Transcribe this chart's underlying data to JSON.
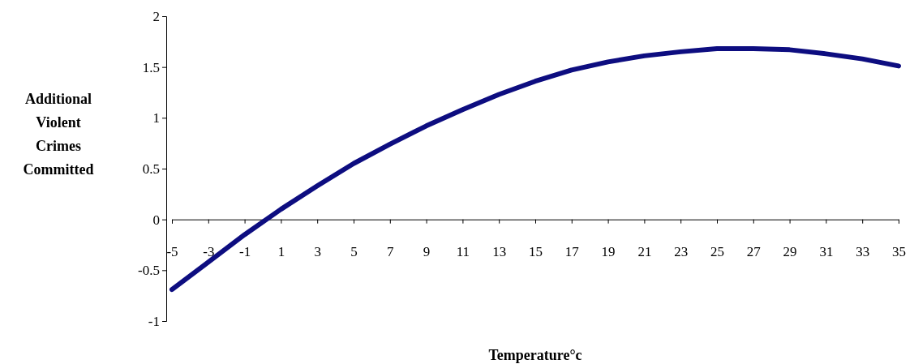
{
  "chart_data": {
    "type": "line",
    "ylabel": "Additional Violent Crimes Committed",
    "xlabel": "Temperature°c",
    "x": [
      -5,
      -3,
      -1,
      1,
      3,
      5,
      7,
      9,
      11,
      13,
      15,
      17,
      19,
      21,
      23,
      25,
      27,
      29,
      31,
      33,
      35
    ],
    "series": [
      {
        "color": "#0d0d80",
        "values": [
          -0.69,
          -0.42,
          -0.15,
          0.1,
          0.33,
          0.55,
          0.74,
          0.92,
          1.08,
          1.23,
          1.36,
          1.47,
          1.55,
          1.61,
          1.65,
          1.68,
          1.68,
          1.67,
          1.63,
          1.58,
          1.51
        ]
      }
    ],
    "xlim": [
      -5,
      35
    ],
    "xticks": [
      -5,
      -3,
      -1,
      1,
      3,
      5,
      7,
      9,
      11,
      13,
      15,
      17,
      19,
      21,
      23,
      25,
      27,
      29,
      31,
      33,
      35
    ],
    "ylim": [
      -1,
      2
    ],
    "yticks": [
      -1,
      -0.5,
      0,
      0.5,
      1,
      1.5,
      2
    ],
    "marker": "none",
    "line_style": "solid"
  }
}
